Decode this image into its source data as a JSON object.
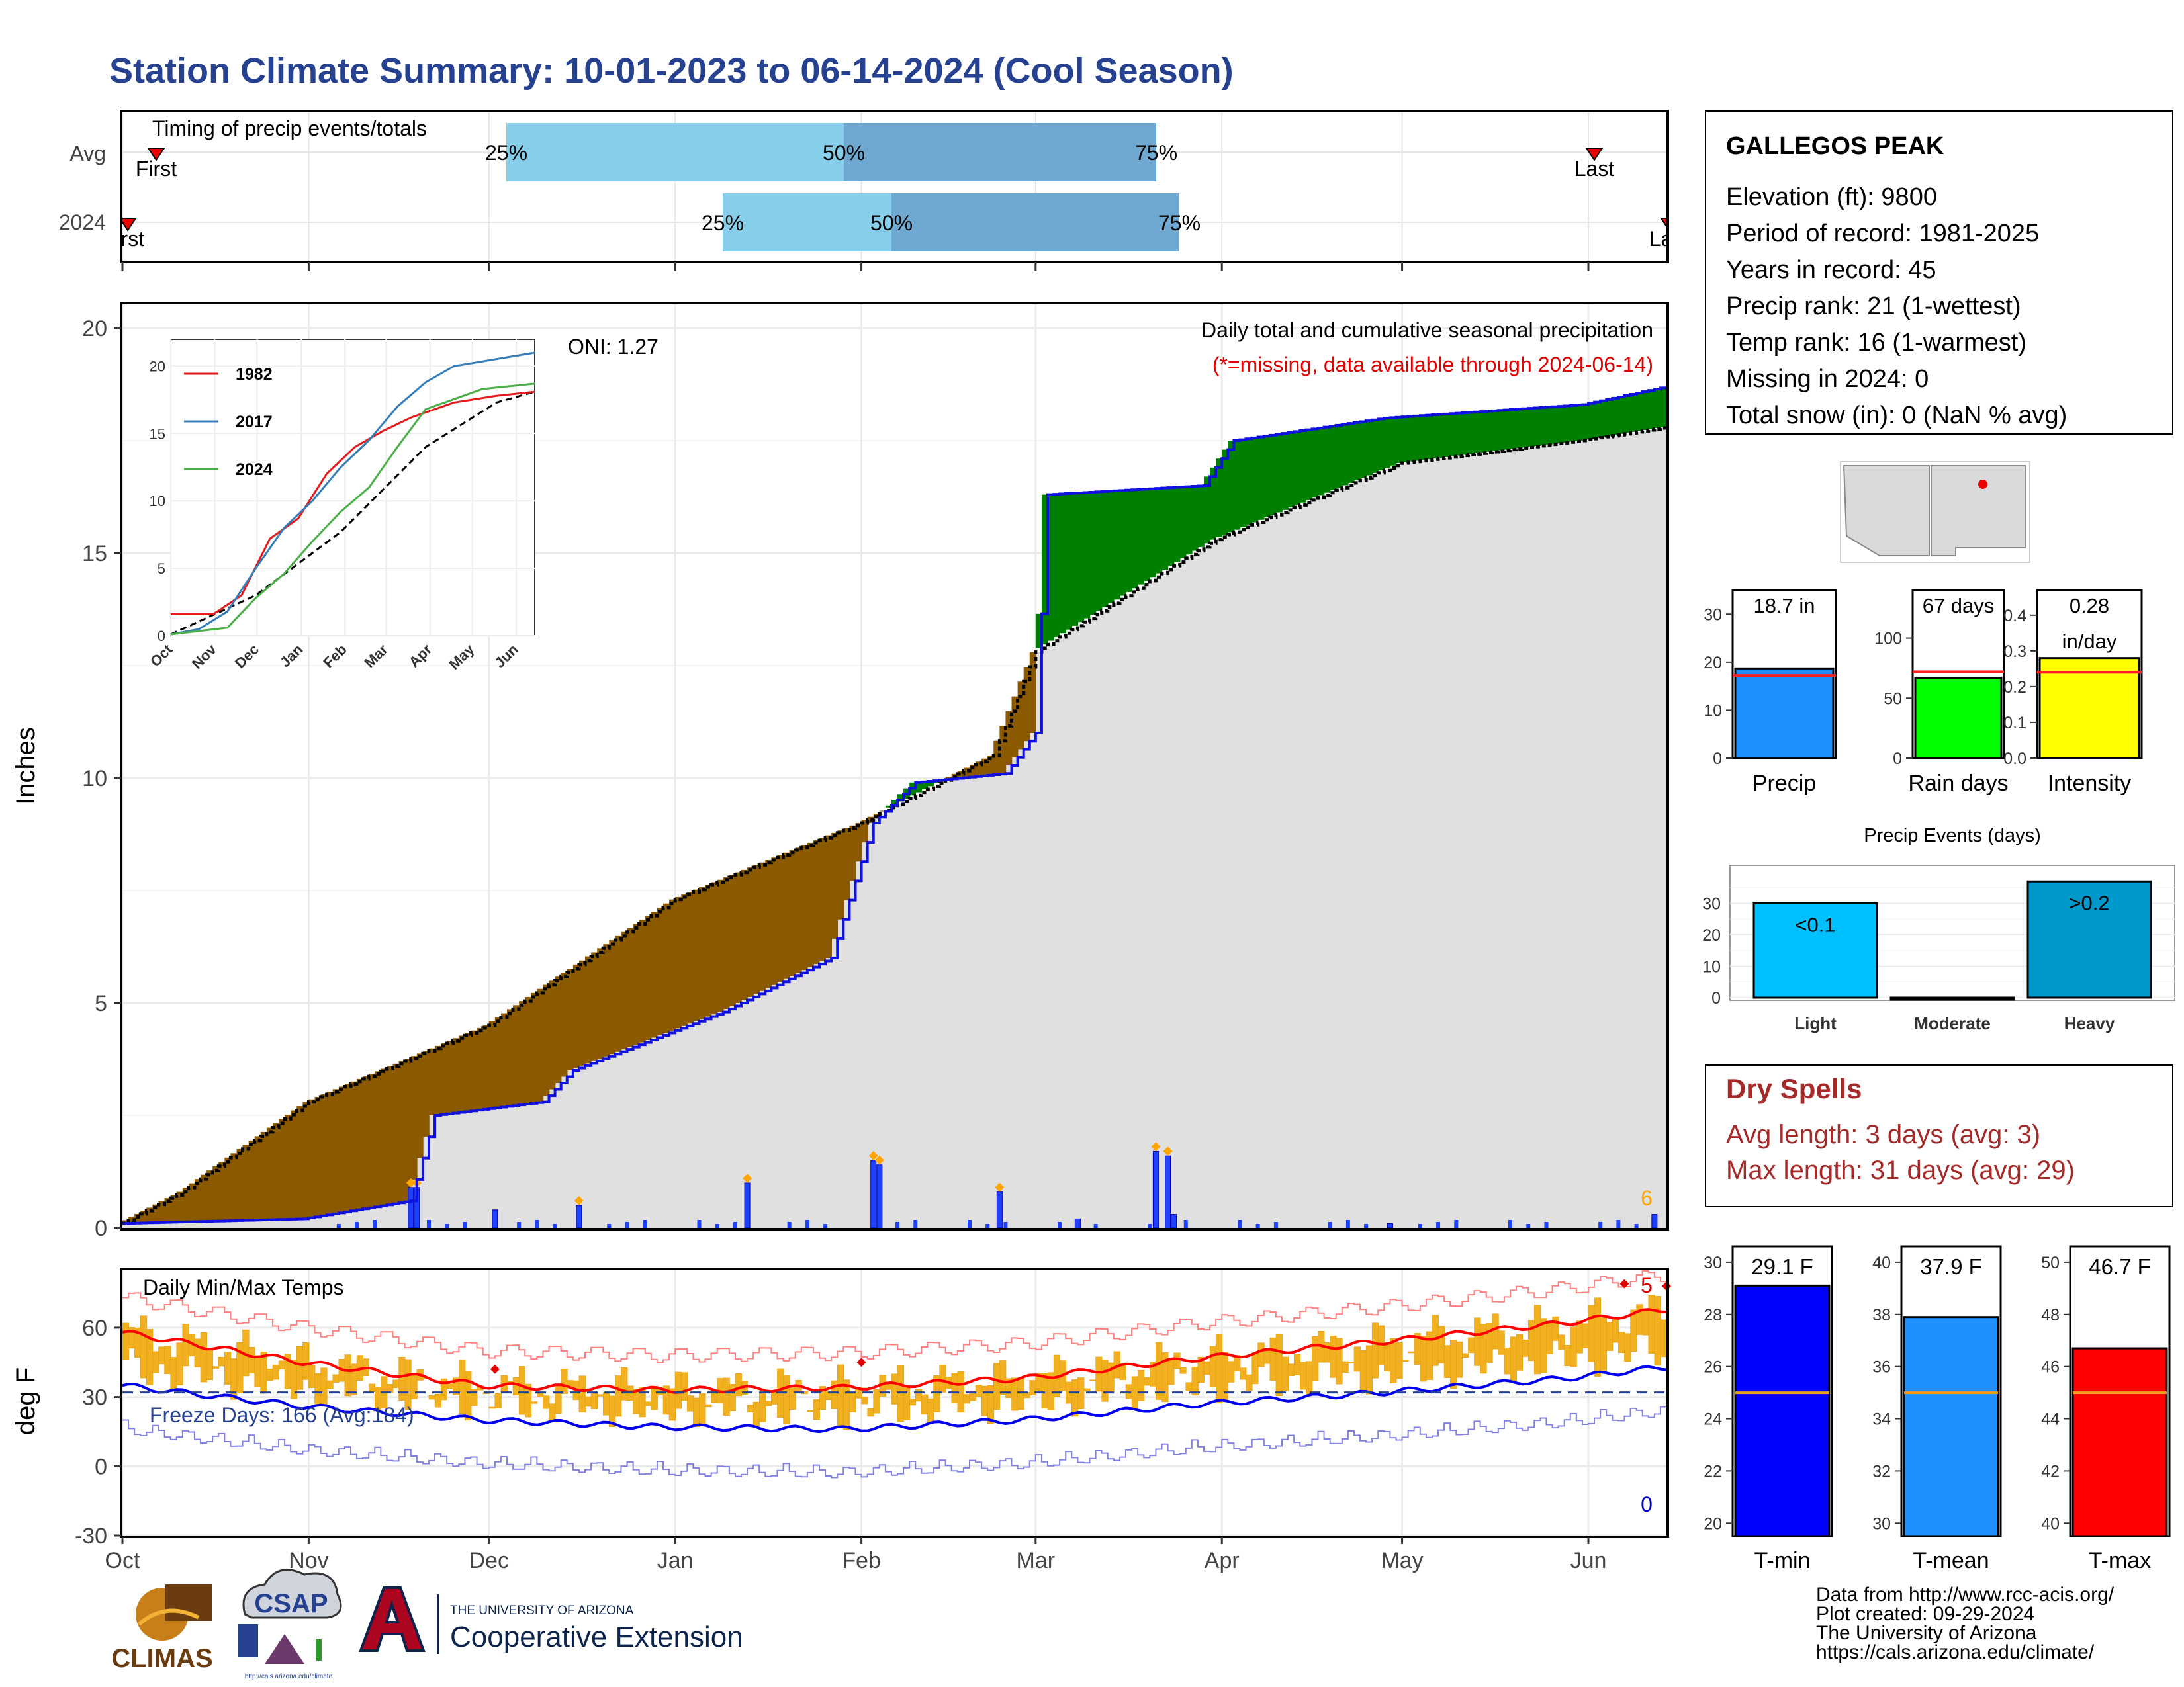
{
  "title": "Station Climate Summary: 10-01-2023 to 06-14-2024 (Cool Season)",
  "timing": {
    "label": "Timing of precip events/totals",
    "rows": [
      "Avg",
      "2024"
    ],
    "avg": {
      "first": "First",
      "last": "Last",
      "p25": "25%",
      "p50": "50%",
      "p75": "75%"
    },
    "y2024": {
      "first": "First",
      "last": "Last",
      "p25": "25%",
      "p50": "50%",
      "p75": "75%"
    }
  },
  "station": {
    "name": "GALLEGOS PEAK",
    "lines": [
      "Elevation (ft): 9800",
      "Period of record: 1981-2025",
      "Years in record: 45",
      "Precip rank: 21 (1-wettest)",
      "Temp rank: 16 (1-warmest)",
      "Missing in 2024: 0",
      "Total snow (in): 0 (NaN % avg)"
    ]
  },
  "precip_panel": {
    "ylabel": "Inches",
    "note1": "Daily total and cumulative seasonal precipitation",
    "note2": "(*=missing, data available through 2024-06-14)",
    "oni": "ONI: 1.27",
    "count_label": "6"
  },
  "temp_panel": {
    "ylabel": "deg F",
    "title": "Daily Min/Max Temps",
    "freeze": "Freeze Days: 166 (Avg:184)",
    "hot_count": "5",
    "cold_count": "0"
  },
  "month_labels": [
    "Oct",
    "Nov",
    "Dec",
    "Jan",
    "Feb",
    "Mar",
    "Apr",
    "May",
    "Jun"
  ],
  "bar_panels": {
    "precip": {
      "label": "Precip",
      "value": "18.7 in"
    },
    "rain_days": {
      "label": "Rain days",
      "value": "67 days"
    },
    "intensity": {
      "label": "Intensity",
      "value1": "0.28",
      "value2": "in/day"
    }
  },
  "events": {
    "title": "Precip Events (days)",
    "categories": [
      "Light",
      "Moderate",
      "Heavy"
    ],
    "labels": [
      "<0.1",
      "",
      ">0.2"
    ]
  },
  "dry_spells": {
    "title": "Dry Spells",
    "avg": "Avg length: 3 days (avg: 3)",
    "max": "Max length: 31 days (avg: 29)"
  },
  "temp_bars": {
    "tmin": {
      "label": "T-min",
      "value": "29.1 F"
    },
    "tmean": {
      "label": "T-mean",
      "value": "37.9 F"
    },
    "tmax": {
      "label": "T-max",
      "value": "46.7 F"
    }
  },
  "footer": {
    "lines": [
      "Data from http://www.rcc-acis.org/",
      "Plot created: 09-29-2024",
      "The University of Arizona",
      "https://cals.arizona.edu/climate/"
    ],
    "logo_climas": "CLIMAS",
    "logo_csap": "CSAP",
    "logo_csap_url": "http://cals.arizona.edu/climate",
    "ua_small": "THE UNIVERSITY OF ARIZONA",
    "ua_big": "Cooperative Extension"
  },
  "chart_data": [
    {
      "type": "area",
      "title": "Daily total and cumulative seasonal precipitation",
      "ylabel": "Inches",
      "ylim": [
        0,
        20
      ],
      "yticks": [
        0,
        5,
        10,
        15,
        20
      ],
      "x_unit": "day of season (0 = Oct 1)",
      "season_days": 257,
      "avg_cumulative": {
        "x": [
          0,
          10,
          31,
          61,
          92,
          123,
          145,
          152,
          182,
          213,
          243,
          257
        ],
        "y": [
          0.1,
          0.8,
          2.8,
          4.5,
          7.3,
          9.0,
          10.5,
          12.8,
          15.3,
          17.0,
          17.5,
          17.8
        ]
      },
      "obs_cumulative": {
        "x": [
          0,
          30,
          48,
          52,
          70,
          75,
          100,
          118,
          125,
          132,
          147,
          152,
          154,
          180,
          185,
          210,
          243,
          257
        ],
        "y": [
          0.1,
          0.2,
          0.6,
          2.5,
          2.8,
          3.5,
          4.8,
          6.0,
          9.0,
          9.9,
          10.1,
          11.0,
          16.3,
          16.5,
          17.5,
          18.0,
          18.3,
          18.7
        ]
      },
      "daily_precip": {
        "x": [
          48,
          49,
          62,
          76,
          104,
          125,
          126,
          146,
          159,
          172,
          174,
          175,
          211,
          255
        ],
        "y": [
          0.9,
          0.9,
          0.4,
          0.5,
          1.0,
          1.5,
          1.4,
          0.8,
          0.2,
          1.7,
          1.6,
          0.3,
          0.1,
          0.3
        ]
      },
      "series": [
        {
          "name": "1982",
          "color": "#e41a1c"
        },
        {
          "name": "2017",
          "color": "#377eb8"
        },
        {
          "name": "2024",
          "color": "#4daf4a"
        }
      ],
      "inset_xlabels": [
        "Oct",
        "Nov",
        "Dec",
        "Jan",
        "Feb",
        "Mar",
        "Apr",
        "May",
        "Jun"
      ],
      "inset_yticks": [
        0,
        5,
        10,
        15,
        20
      ]
    },
    {
      "type": "line",
      "title": "Daily Min/Max Temps",
      "ylabel": "deg F",
      "ylim": [
        -30,
        90
      ],
      "yticks": [
        -30,
        0,
        30,
        60
      ],
      "freeze_line": 32,
      "avg_tmax": {
        "x": [
          0,
          30,
          60,
          90,
          120,
          150,
          180,
          210,
          240,
          257
        ],
        "y": [
          58,
          45,
          35,
          33,
          34,
          38,
          47,
          54,
          62,
          68
        ]
      },
      "avg_tmin": {
        "x": [
          0,
          30,
          60,
          90,
          120,
          150,
          180,
          210,
          240,
          257
        ],
        "y": [
          35,
          26,
          20,
          17,
          16,
          20,
          27,
          32,
          38,
          43
        ]
      }
    },
    {
      "type": "bar",
      "title": "Precip",
      "ylim": [
        0,
        35
      ],
      "yticks": [
        0,
        10,
        20,
        30
      ],
      "values": [
        18.7
      ],
      "avg": 17.2,
      "color": "#1e90ff"
    },
    {
      "type": "bar",
      "title": "Rain days",
      "ylim": [
        0,
        140
      ],
      "yticks": [
        0,
        50,
        100
      ],
      "values": [
        67
      ],
      "avg": 72,
      "color": "#00ff00"
    },
    {
      "type": "bar",
      "title": "Intensity",
      "ylim": [
        0,
        0.47
      ],
      "yticks": [
        0.0,
        0.1,
        0.2,
        0.3,
        0.4
      ],
      "values": [
        0.28
      ],
      "avg": 0.24,
      "color": "#ffff00"
    },
    {
      "type": "bar",
      "title": "Precip Events (days)",
      "categories": [
        "Light",
        "Moderate",
        "Heavy"
      ],
      "values": [
        30,
        0,
        37
      ],
      "ylim": [
        0,
        40
      ],
      "yticks": [
        0,
        10,
        20,
        30
      ],
      "colors": [
        "#00bfff",
        "#00bfff",
        "#0099cc"
      ]
    },
    {
      "type": "bar",
      "title": "T-min",
      "ylim": [
        19.5,
        30.2
      ],
      "yticks": [
        20,
        22,
        24,
        26,
        28,
        30
      ],
      "values": [
        29.1
      ],
      "avg": 25.0,
      "color": "#0000ff"
    },
    {
      "type": "bar",
      "title": "T-mean",
      "ylim": [
        29.5,
        40.2
      ],
      "yticks": [
        30,
        32,
        34,
        36,
        38,
        40
      ],
      "values": [
        37.9
      ],
      "avg": 35.0,
      "color": "#1e90ff"
    },
    {
      "type": "bar",
      "title": "T-max",
      "ylim": [
        39.5,
        50.2
      ],
      "yticks": [
        40,
        42,
        44,
        46,
        48,
        50
      ],
      "values": [
        46.7
      ],
      "avg": 45.0,
      "color": "#ff0000"
    }
  ]
}
